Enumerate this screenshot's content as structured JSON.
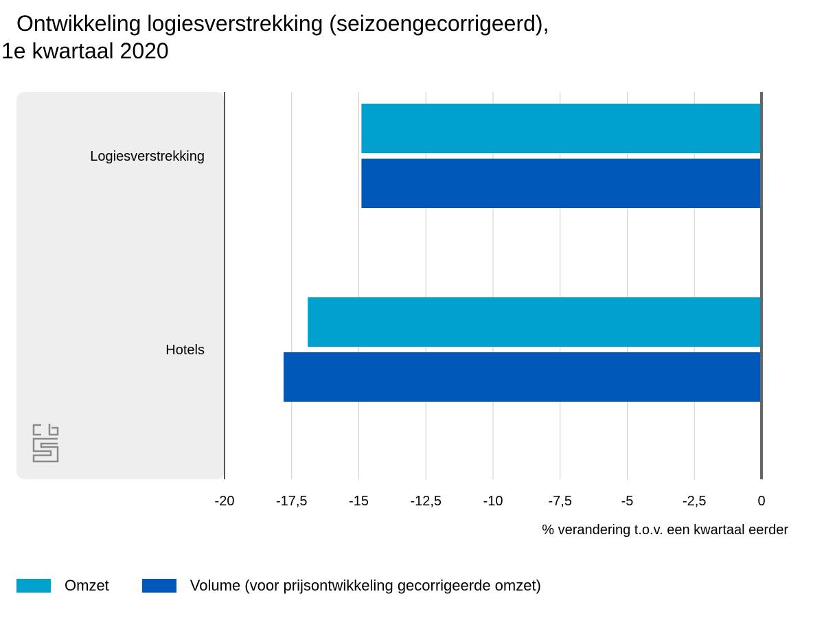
{
  "title": {
    "line1": "Ontwikkeling logiesverstrekking (seizoengecorrigeerd),",
    "line2": "1e kwartaal 2020"
  },
  "logo": {
    "icon": "cbs-logo-icon"
  },
  "chart_data": {
    "type": "bar",
    "orientation": "horizontal",
    "categories": [
      "Logiesverstrekking",
      "Hotels"
    ],
    "series": [
      {
        "name": "Omzet",
        "color": "#00a1cd",
        "values": [
          -14.9,
          -16.9
        ]
      },
      {
        "name": "Volume (voor prijsontwikkeling gecorrigeerde omzet)",
        "color": "#0058b8",
        "values": [
          -14.9,
          -17.8
        ]
      }
    ],
    "xlim": [
      -20,
      0
    ],
    "xticks": [
      -20,
      -17.5,
      -15,
      -12.5,
      -10,
      -7.5,
      -5,
      -2.5,
      0
    ],
    "xtick_labels": [
      "-20",
      "-17,5",
      "-15",
      "-12,5",
      "-10",
      "-7,5",
      "-5",
      "-2,5",
      "0"
    ],
    "xlabel": "% verandering t.o.v. een kwartaal eerder",
    "ylabel": "",
    "grid": true,
    "legend_position": "bottom-left"
  }
}
